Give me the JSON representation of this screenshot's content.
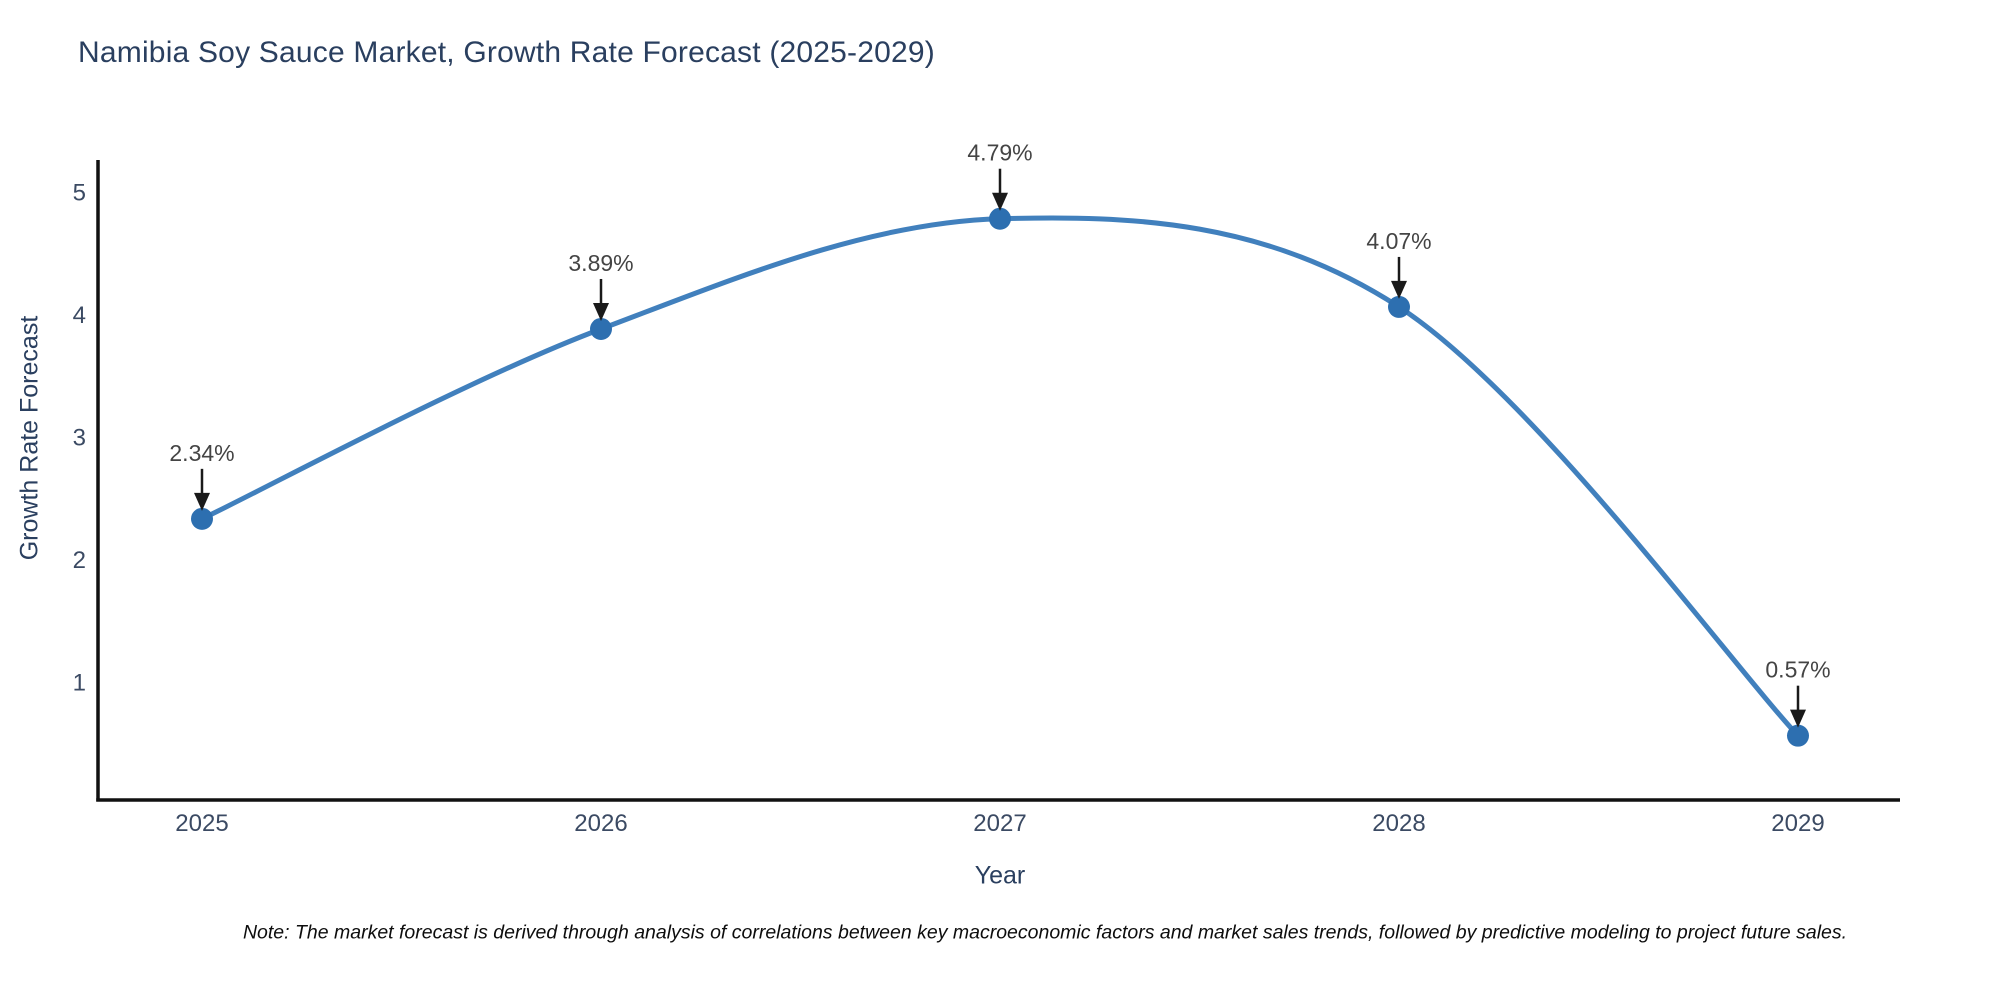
{
  "chart": {
    "title": "Namibia Soy Sauce Market, Growth Rate Forecast (2025-2029)",
    "xlabel": "Year",
    "ylabel": "Growth Rate Forecast",
    "note": "Note: The market forecast is derived through analysis of correlations between key macroeconomic factors and market sales trends, followed by predictive modeling to project future sales."
  },
  "chart_data": {
    "type": "line",
    "line_shape": "spline",
    "title": "Namibia Soy Sauce Market, Growth Rate Forecast (2025-2029)",
    "xlabel": "Year",
    "ylabel": "Growth Rate Forecast",
    "x": [
      2025,
      2026,
      2027,
      2028,
      2029
    ],
    "values": [
      2.34,
      3.89,
      4.79,
      4.07,
      0.57
    ],
    "point_labels": [
      "2.34%",
      "3.89%",
      "4.79%",
      "4.07%",
      "0.57%"
    ],
    "series_name": "Growth Rate Forecast",
    "xticks": [
      "2025",
      "2026",
      "2027",
      "2028",
      "2029"
    ],
    "yticks": [
      1,
      2,
      3,
      4,
      5
    ],
    "ylim": [
      0,
      5.3
    ],
    "grid": false,
    "legend": false,
    "annotations_style": "value label with down arrow to marker",
    "colors": {
      "line": "#4180bd",
      "marker": "#2d6fb0",
      "axis_line": "#111111",
      "tick_label": "#3b4a63",
      "annotation_text": "#444444",
      "annotation_arrow": "#1a1a1a",
      "title_text": "#2a3f5f",
      "background": "#ffffff"
    }
  }
}
